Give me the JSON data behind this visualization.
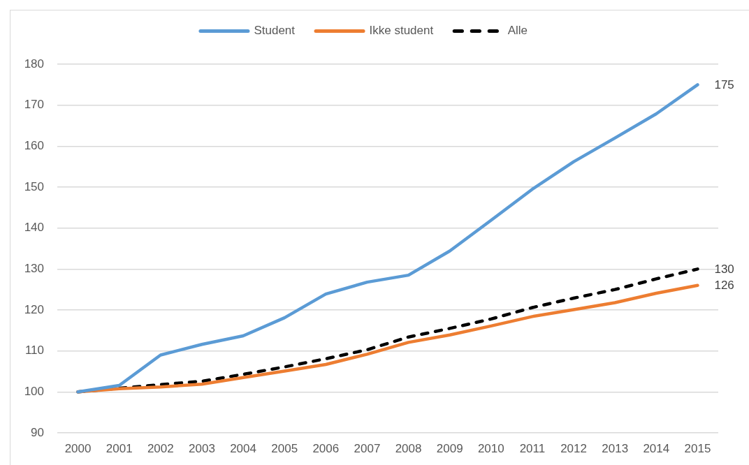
{
  "chart_data": {
    "type": "line",
    "categories": [
      "2000",
      "2001",
      "2002",
      "2003",
      "2004",
      "2005",
      "2006",
      "2007",
      "2008",
      "2009",
      "2010",
      "2011",
      "2012",
      "2013",
      "2014",
      "2015"
    ],
    "series": [
      {
        "name": "Student",
        "color": "#5b9bd5",
        "line_style": "solid",
        "values": [
          100,
          101.6,
          109,
          111.6,
          113.7,
          118.1,
          123.9,
          126.8,
          128.5,
          134.4,
          141.9,
          149.5,
          156.2,
          162,
          167.9,
          175
        ],
        "value_labels": [
          null,
          null,
          null,
          null,
          null,
          null,
          null,
          null,
          null,
          null,
          null,
          null,
          null,
          null,
          null,
          "175"
        ]
      },
      {
        "name": "Ikke student",
        "color": "#ed7d31",
        "line_style": "solid",
        "values": [
          100,
          100.8,
          101.2,
          101.9,
          103.5,
          105.1,
          106.7,
          109.2,
          112.1,
          113.9,
          116.1,
          118.4,
          120.1,
          121.8,
          124.1,
          126
        ],
        "value_labels": [
          null,
          null,
          null,
          null,
          null,
          null,
          null,
          null,
          null,
          null,
          null,
          null,
          null,
          null,
          null,
          "126"
        ]
      },
      {
        "name": "Alle",
        "color": "#000000",
        "line_style": "dashed",
        "values": [
          100,
          100.9,
          101.8,
          102.6,
          104.3,
          106.1,
          108.1,
          110.3,
          113.4,
          115.5,
          117.8,
          120.6,
          122.9,
          125,
          127.6,
          130
        ],
        "value_labels": [
          null,
          null,
          null,
          null,
          null,
          null,
          null,
          null,
          null,
          null,
          null,
          null,
          null,
          null,
          null,
          "130"
        ]
      }
    ],
    "ylim": [
      90,
      180
    ],
    "yticks": [
      90,
      100,
      110,
      120,
      130,
      140,
      150,
      160,
      170,
      180
    ],
    "grid": "y",
    "legend": "top",
    "marker": "none"
  }
}
